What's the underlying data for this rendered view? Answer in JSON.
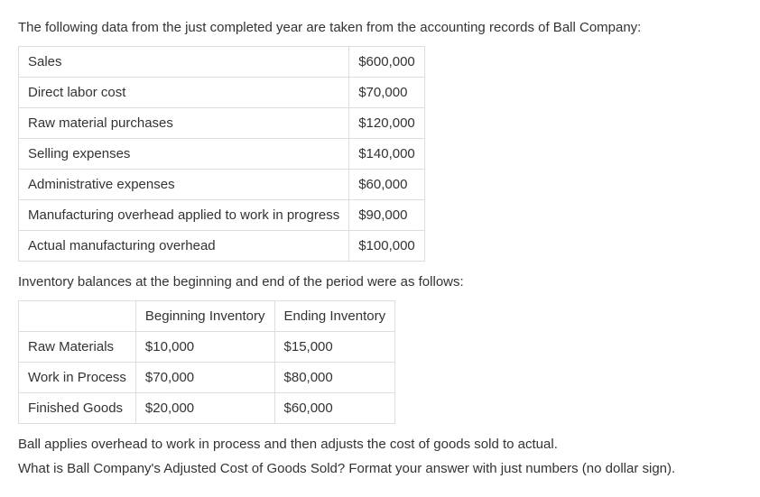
{
  "intro": "The following data from the just completed year are taken from the accounting records of Ball Company:",
  "table1": {
    "rows": [
      {
        "label": "Sales",
        "value": "$600,000"
      },
      {
        "label": "Direct labor cost",
        "value": "$70,000"
      },
      {
        "label": "Raw material purchases",
        "value": "$120,000"
      },
      {
        "label": "Selling expenses",
        "value": "$140,000"
      },
      {
        "label": "Administrative expenses",
        "value": "$60,000"
      },
      {
        "label": "Manufacturing overhead applied to work in progress",
        "value": "$90,000"
      },
      {
        "label": "Actual manufacturing overhead",
        "value": "$100,000"
      }
    ]
  },
  "midtext": "Inventory balances at the beginning and end of the period were as follows:",
  "table2": {
    "headers": [
      "",
      "Beginning Inventory",
      "Ending Inventory"
    ],
    "rows": [
      {
        "label": "Raw Materials",
        "beginning": "$10,000",
        "ending": "$15,000"
      },
      {
        "label": "Work in Process",
        "beginning": "$70,000",
        "ending": "$80,000"
      },
      {
        "label": "Finished Goods",
        "beginning": "$20,000",
        "ending": "$60,000"
      }
    ]
  },
  "footer1": "Ball applies overhead to work in process and then adjusts the cost of goods sold to actual.",
  "footer2": "What is Ball Company's Adjusted Cost of Goods Sold? Format your answer with just numbers (no dollar sign)."
}
